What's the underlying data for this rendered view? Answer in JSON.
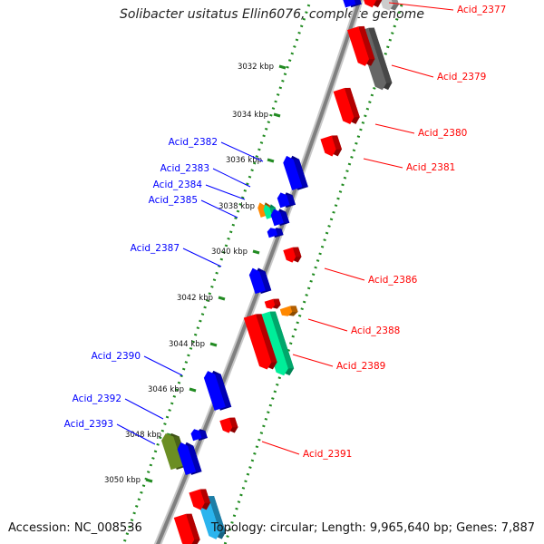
{
  "map": {
    "title": "Solibacter usitatus Ellin6076, complete genome",
    "accession": "Accession: NC_008536",
    "stats": "Topology: circular; Length: 9,965,640 bp; Genes: 7,887"
  },
  "ticks": [
    {
      "label": "3032 kbp"
    },
    {
      "label": "3034 kbp"
    },
    {
      "label": "3036 kbp"
    },
    {
      "label": "3038 kbp"
    },
    {
      "label": "3040 kbp"
    },
    {
      "label": "3042 kbp"
    },
    {
      "label": "3044 kbp"
    },
    {
      "label": "3046 kbp"
    },
    {
      "label": "3048 kbp"
    },
    {
      "label": "3050 kbp"
    }
  ],
  "genes_forward": [
    {
      "name": "Acid_2377",
      "color": "#ff0000"
    },
    {
      "name": "Acid_2379",
      "color": "#ff0000"
    },
    {
      "name": "Acid_2380",
      "color": "#ff0000"
    },
    {
      "name": "Acid_2381",
      "color": "#ff0000"
    },
    {
      "name": "Acid_2386",
      "color": "#ff0000"
    },
    {
      "name": "Acid_2388",
      "color": "#ff0000"
    },
    {
      "name": "Acid_2389",
      "color": "#ff0000"
    },
    {
      "name": "Acid_2391",
      "color": "#ff0000"
    }
  ],
  "genes_reverse": [
    {
      "name": "Acid_2382",
      "color": "#0000ff"
    },
    {
      "name": "Acid_2383",
      "color": "#0000ff"
    },
    {
      "name": "Acid_2384",
      "color": "#0000ff"
    },
    {
      "name": "Acid_2385",
      "color": "#0000ff"
    },
    {
      "name": "Acid_2387",
      "color": "#0000ff"
    },
    {
      "name": "Acid_2390",
      "color": "#0000ff"
    },
    {
      "name": "Acid_2392",
      "color": "#0000ff"
    },
    {
      "name": "Acid_2393",
      "color": "#0000ff"
    }
  ],
  "colors": {
    "forward_cds": "#ff0000",
    "reverse_cds": "#0000ff",
    "rna_gene": "#00ee99",
    "trna_gene": "#ff8800",
    "pseudo_gene": "#6b8e23",
    "other_gene": "#666666",
    "light_blue_gene": "#2ab4ee",
    "backbone": "#888888",
    "tick_dots": "#228b22"
  }
}
